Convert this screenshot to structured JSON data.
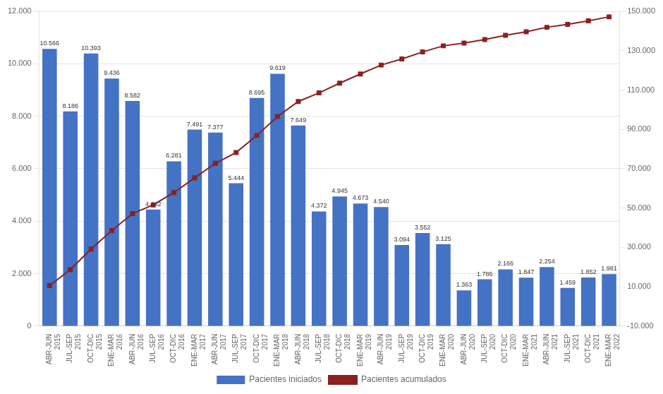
{
  "chart_data": {
    "type": "bar",
    "categories": [
      "ABR-JUN 2015",
      "JUL-SEP 2015",
      "OCT-DIC 2015",
      "ENE-MAR 2016",
      "ABR-JUN 2016",
      "JUL-SEP 2016",
      "OCT-DIC 2016",
      "ENE-MAR 2017",
      "ABR-JUN 2017",
      "JUL-SEP 2017",
      "OCT-DIC 2017",
      "ENE-MAR 2018",
      "ABR-JUN 2018",
      "JUL-SEP 2018",
      "OCT-DIC 2018",
      "ENE-MAR 2019",
      "ABR-JUN 2019",
      "JUL-SEP 2019",
      "OCT-DIC 2019",
      "ENE-MAR 2020",
      "ABR-JUN 2020",
      "JUL-SEP 2020",
      "OCT-DIC 2020",
      "ENE-MAR 2021",
      "ABR-JUN 2021",
      "JUL-SEP 2021",
      "OCT-DIC 2021",
      "ENE-MAR 2022"
    ],
    "series": [
      {
        "name": "Pacientes iniciados",
        "type": "bar",
        "color": "#4472C4",
        "data_labels": true,
        "values": [
          10566,
          8186,
          10393,
          9436,
          8582,
          4442,
          6281,
          7491,
          7377,
          5444,
          8695,
          9619,
          7649,
          4372,
          4945,
          4673,
          4540,
          3094,
          3552,
          3125,
          1363,
          1786,
          2166,
          1847,
          2254,
          1459,
          1852,
          1981
        ],
        "value_labels": [
          "10.566",
          "8.186",
          "10.393",
          "9.436",
          "8.582",
          "4.442",
          "6.281",
          "7.491",
          "7.377",
          "5.444",
          "8.695",
          "9.619",
          "7.649",
          "4.372",
          "4.945",
          "4.673",
          "4.540",
          "3.094",
          "3.552",
          "3.125",
          "1.363",
          "1.786",
          "2.166",
          "1.847",
          "2.254",
          "1.459",
          "1.852",
          "1.981"
        ]
      },
      {
        "name": "Pacientes acumulados",
        "type": "line",
        "axis": "y2",
        "color": "#8B2020",
        "marker": "square",
        "line_style": "solid",
        "values": [
          10566,
          18752,
          29145,
          38581,
          47163,
          51605,
          57886,
          65377,
          72754,
          78198,
          86893,
          96512,
          104161,
          108533,
          113478,
          118151,
          122691,
          125785,
          129337,
          132462,
          133825,
          135611,
          137777,
          139624,
          141878,
          143337,
          145189,
          147170
        ]
      }
    ],
    "ylim": [
      0,
      12000
    ],
    "yticks": [
      0,
      {
        "value": 2000,
        "label": "2.000"
      },
      {
        "value": 4000,
        "label": "4.000"
      },
      {
        "value": 6000,
        "label": "6.000"
      },
      {
        "value": 8000,
        "label": "8.000"
      },
      {
        "value": 10000,
        "label": "10.000"
      },
      {
        "value": 12000,
        "label": "12.000"
      }
    ],
    "y2lim": [
      -10000,
      150000
    ],
    "y2ticks": [
      {
        "value": -10000,
        "label": "-10.000"
      },
      {
        "value": 10000,
        "label": "10.000"
      },
      {
        "value": 30000,
        "label": "30.000"
      },
      {
        "value": 50000,
        "label": "50.000"
      },
      {
        "value": 70000,
        "label": "70.000"
      },
      {
        "value": 90000,
        "label": "90.000"
      },
      {
        "value": 110000,
        "label": "110.000"
      },
      {
        "value": 130000,
        "label": "130.000"
      },
      {
        "value": 150000,
        "label": "150.000"
      }
    ],
    "grid": true,
    "legend": "bottom"
  }
}
